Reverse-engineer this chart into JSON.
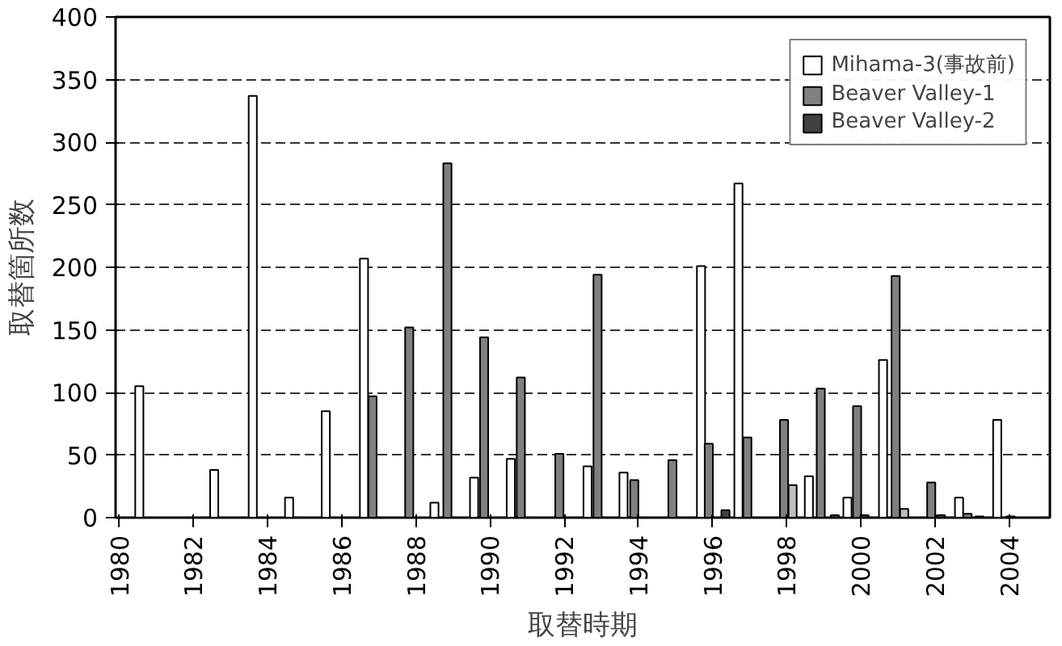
{
  "chart_data": {
    "type": "bar",
    "xlabel": "取替時期",
    "ylabel": "取替箇所数",
    "xlim": [
      1979.9,
      2005.1
    ],
    "xticks": [
      1980,
      1982,
      1984,
      1986,
      1988,
      1990,
      1992,
      1994,
      1996,
      1998,
      2000,
      2002,
      2004
    ],
    "ylim": [
      0,
      400
    ],
    "yticks": [
      0,
      50,
      100,
      150,
      200,
      250,
      300,
      350,
      400
    ],
    "grid": "y",
    "legend": "top right",
    "series": [
      {
        "name": "Mihama-3(事故前)",
        "color": "#ffffff",
        "x": [
          1980.54,
          1982.56,
          1983.6,
          1984.58,
          1985.57,
          1986.6,
          1988.5,
          1989.57,
          1990.56,
          1992.63,
          1993.6,
          1995.69,
          1996.7,
          1998.6,
          1999.64,
          2000.6,
          2002.65,
          2003.68
        ],
        "values": [
          105,
          38,
          337,
          16,
          85,
          207,
          12,
          32,
          47,
          41,
          36,
          201,
          267,
          33,
          16,
          126,
          16,
          78
        ]
      },
      {
        "color": "#bfbfbf",
        "x": [
          1998.16,
          2001.17
        ],
        "values": [
          26,
          7
        ]
      },
      {
        "name": "Beaver Valley-1",
        "color": "#808080",
        "x": [
          1986.83,
          1987.82,
          1988.85,
          1989.84,
          1990.83,
          1991.87,
          1992.9,
          1993.89,
          1994.92,
          1995.9,
          1996.94,
          1997.93,
          1998.92,
          1999.9,
          2000.94,
          2001.9,
          2002.88
        ],
        "values": [
          97,
          152,
          283,
          144,
          112,
          51,
          194,
          30,
          46,
          59,
          64,
          78,
          103,
          89,
          193,
          28,
          3
        ]
      },
      {
        "name": "Beaver Valley-2",
        "color": "#404040",
        "x": [
          1996.35,
          1999.3,
          2000.1,
          2002.16,
          2003.2,
          2004.04
        ],
        "values": [
          6,
          2,
          2,
          2,
          1,
          1
        ]
      }
    ]
  }
}
